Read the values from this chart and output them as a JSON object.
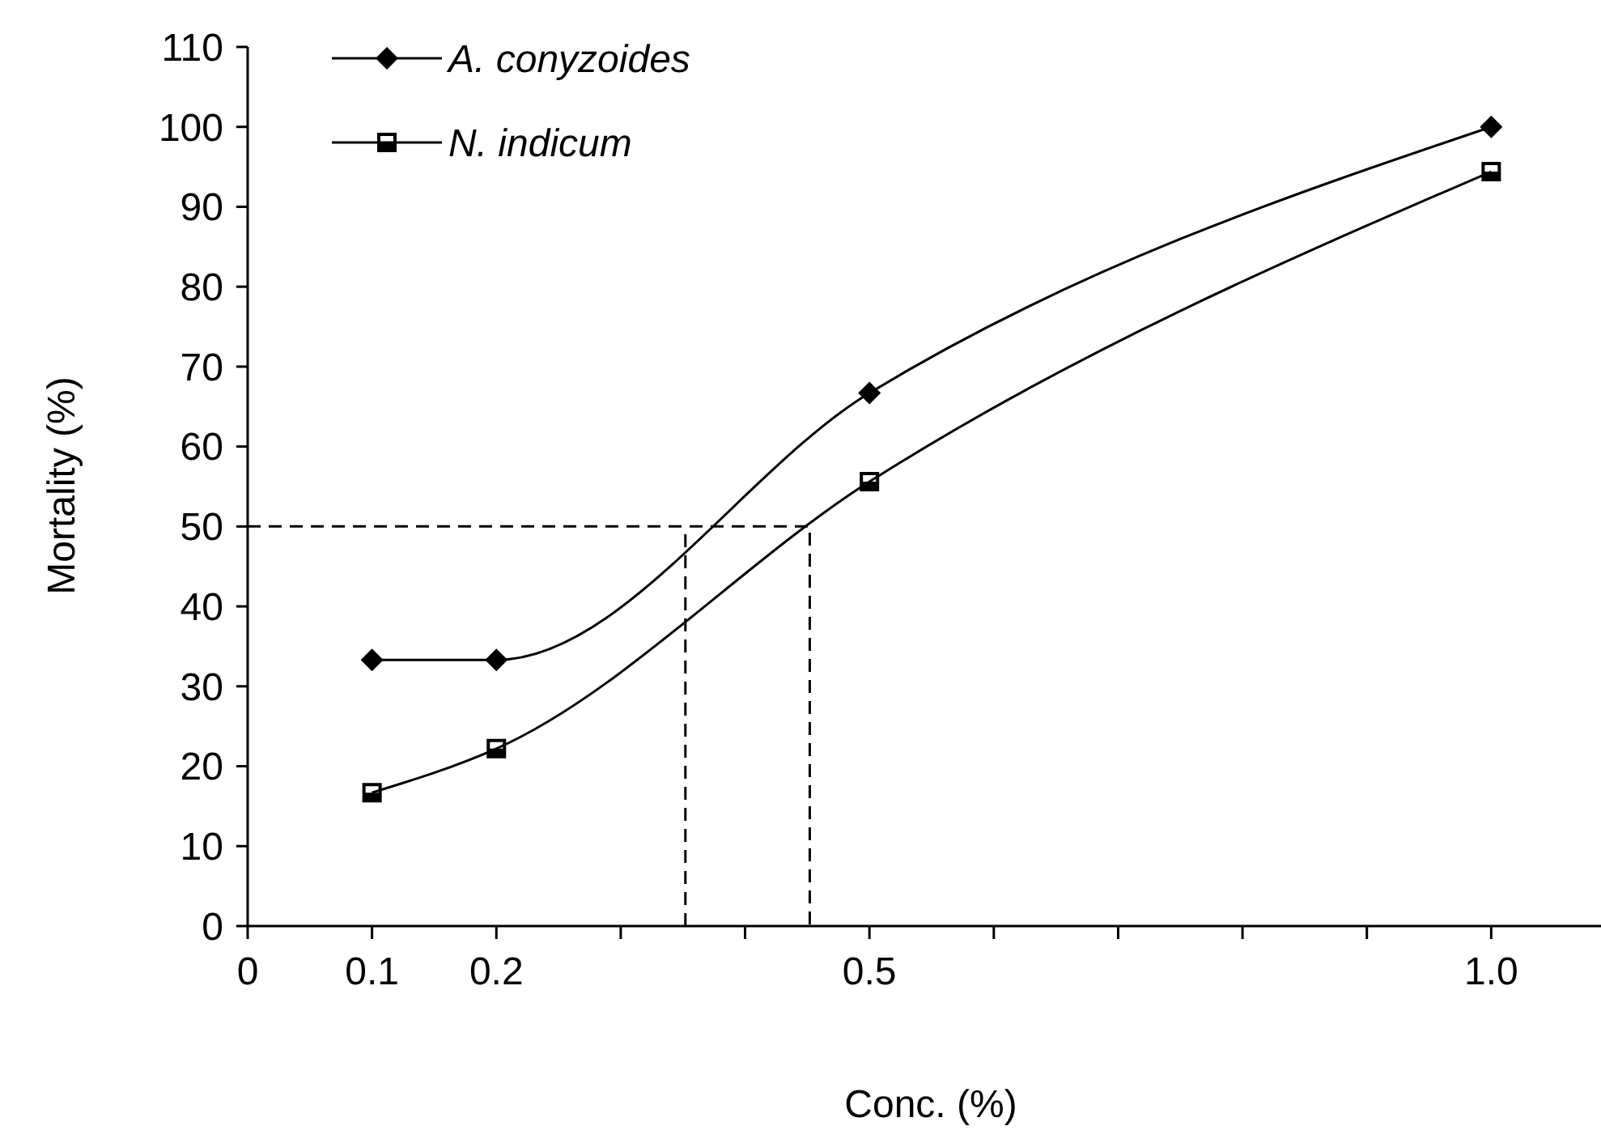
{
  "chart_data": {
    "type": "line",
    "xlabel": "Conc. (%)",
    "ylabel": "Mortality (%)",
    "xlim": [
      0,
      1.1
    ],
    "xticks": [
      0,
      0.1,
      0.2,
      {
        "value": 0.3,
        "label": null
      },
      {
        "value": 0.4,
        "label": null
      },
      0.5,
      {
        "value": 0.6,
        "label": null
      },
      {
        "value": 0.7,
        "label": null
      },
      {
        "value": 0.8,
        "label": null
      },
      {
        "value": 0.9,
        "label": null
      },
      {
        "value": 1,
        "label": "1.0"
      },
      {
        "value": 1.1,
        "label": null
      }
    ],
    "ylim": [
      0,
      110
    ],
    "yticks": [
      0,
      10,
      20,
      30,
      40,
      50,
      60,
      70,
      80,
      90,
      100,
      110
    ],
    "grid": false,
    "legend": "top left",
    "series": [
      {
        "name": "A. conyzoides",
        "color": "#000000",
        "marker": "diamond",
        "line_style": "solid",
        "x": [
          0.1,
          0.2,
          0.5,
          1
        ],
        "values": [
          33.3,
          33.3,
          66.7,
          100
        ]
      },
      {
        "name": "N. indicum",
        "color": "#000000",
        "marker": "square",
        "line_style": "solid",
        "x": [
          0.1,
          0.2,
          0.5,
          1
        ],
        "values": [
          16.7,
          22.2,
          55.6,
          94.4
        ]
      },
      {
        "color": "#000000",
        "marker": "none",
        "line_style": "dashed",
        "x": [
          0,
          0.452,
          0.452
        ],
        "values": [
          50,
          50,
          0
        ]
      },
      {
        "color": "#000000",
        "marker": "none",
        "line_style": "dashed",
        "x": [
          0.352,
          0.352
        ],
        "values": [
          0,
          50
        ]
      }
    ]
  }
}
